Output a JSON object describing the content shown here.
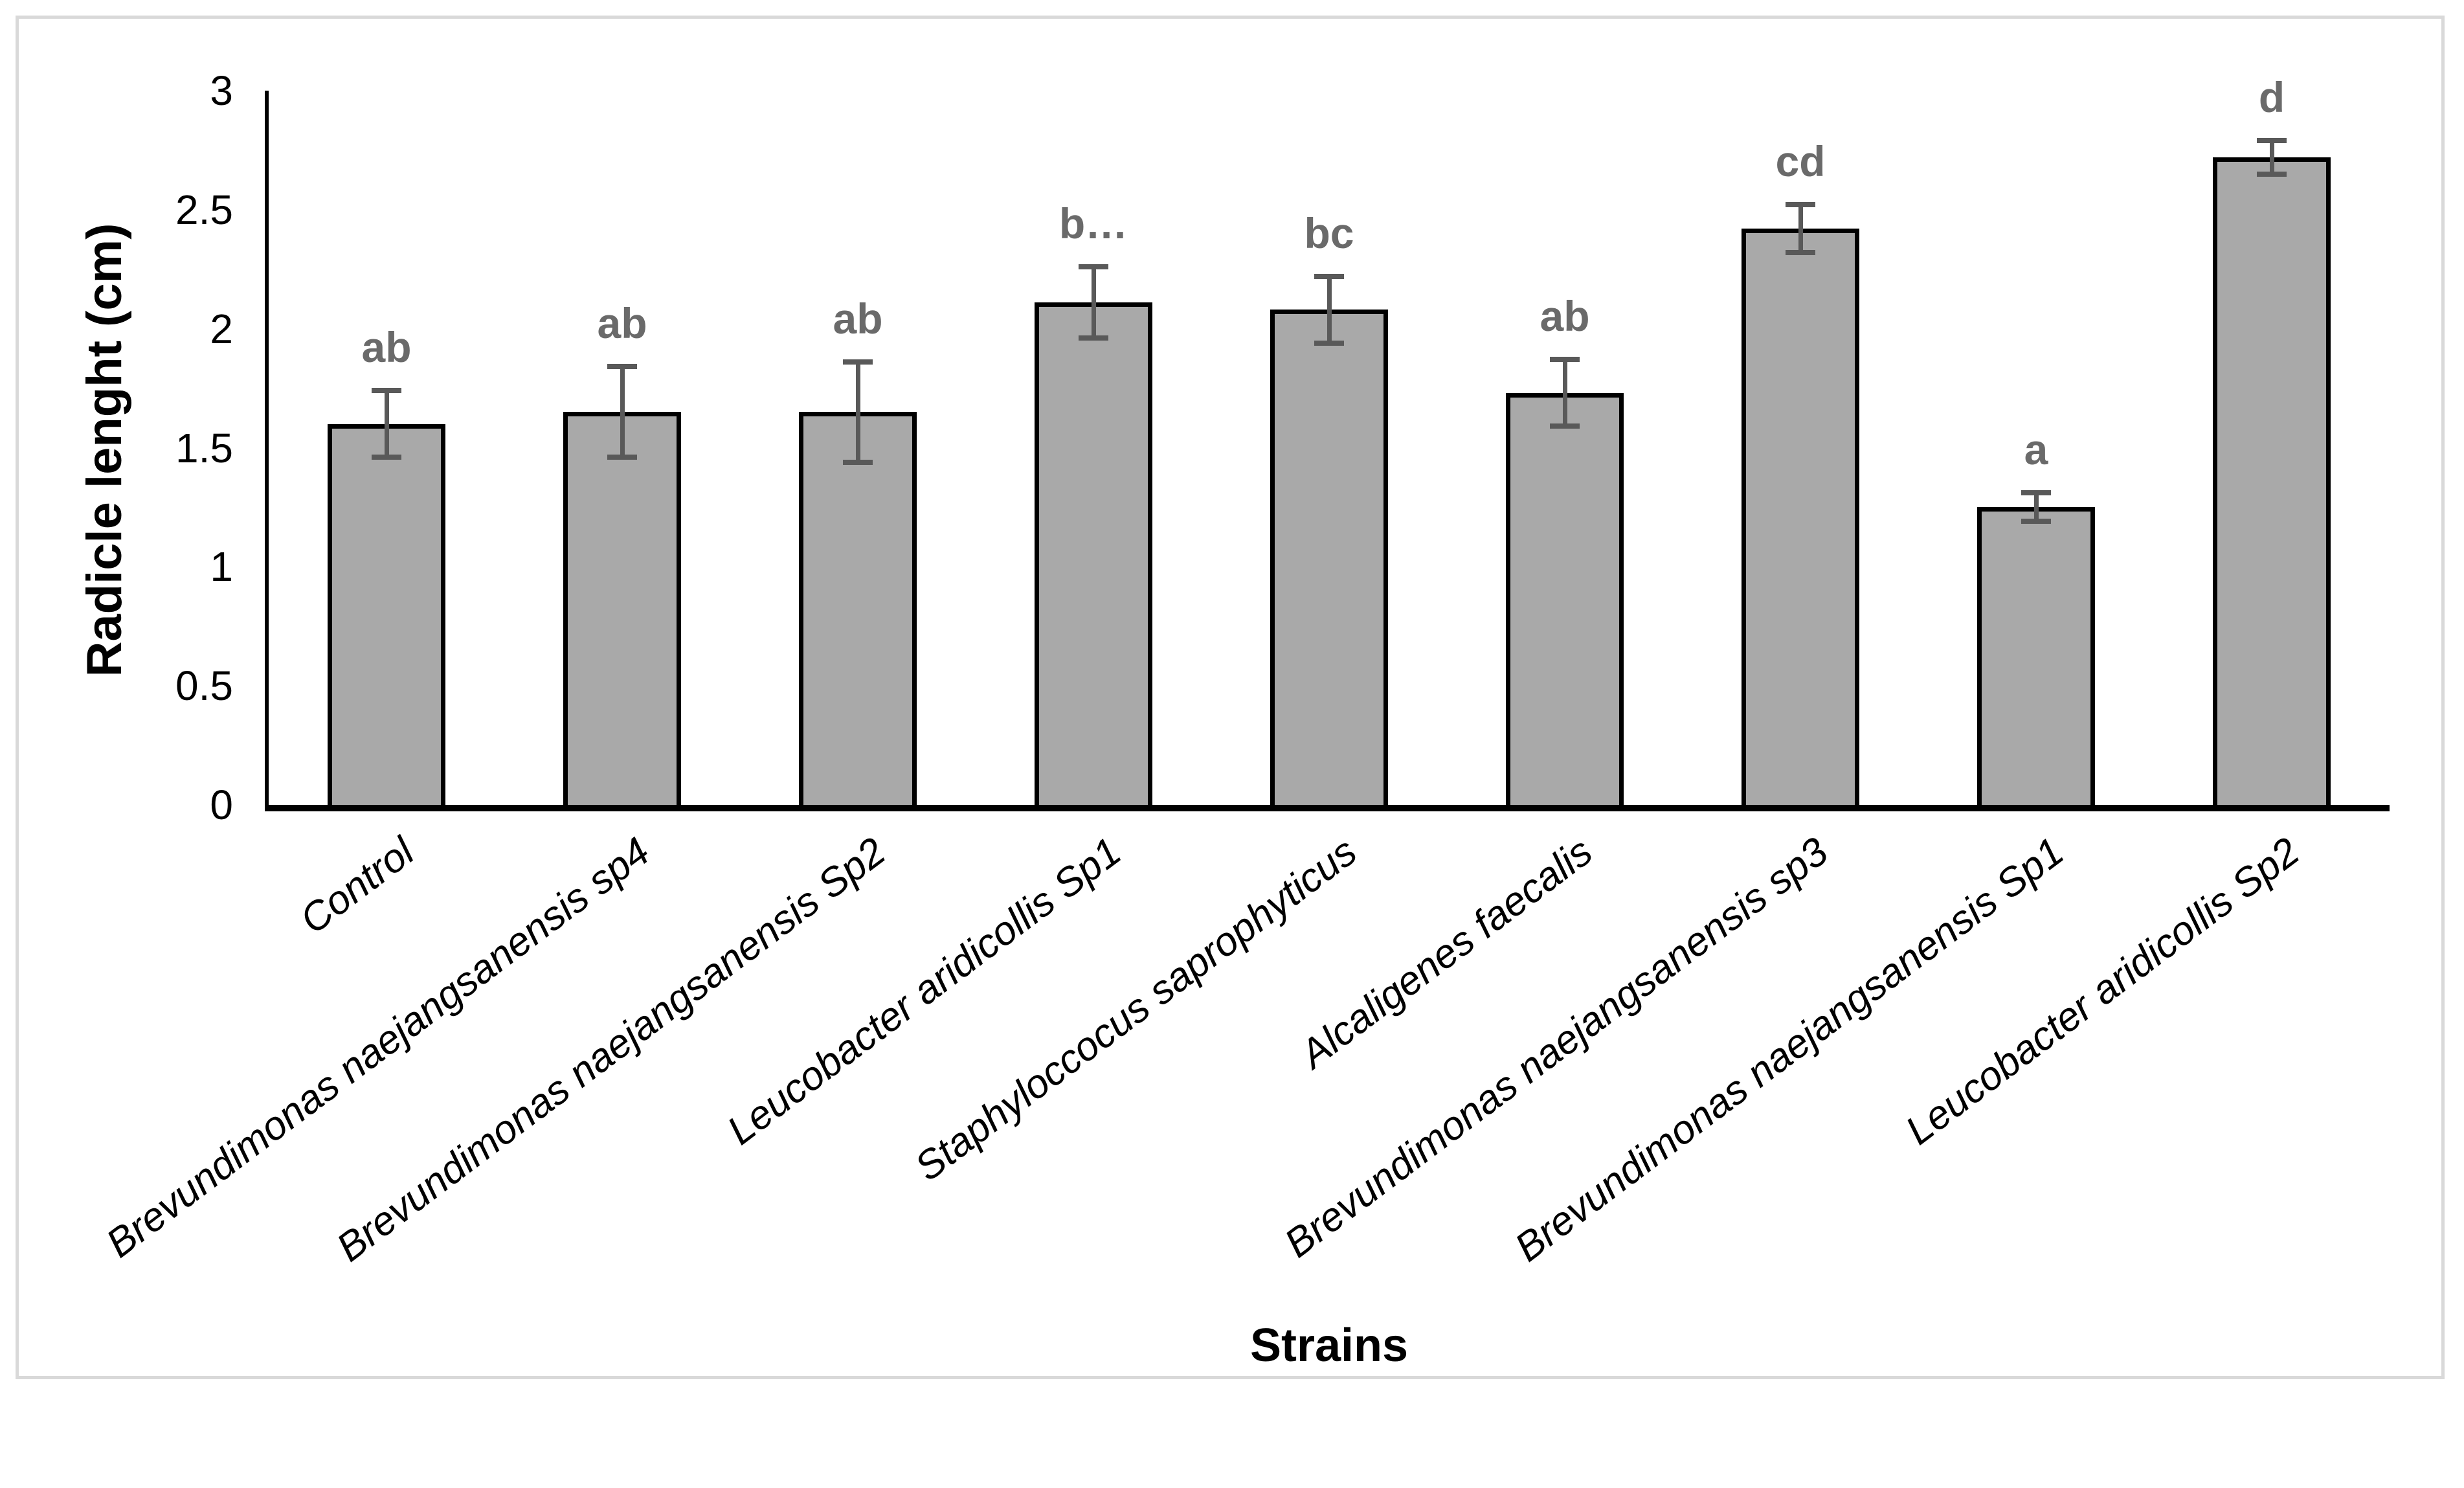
{
  "chart_data": {
    "type": "bar",
    "title": "",
    "xlabel": "Strains",
    "ylabel": "Radicle lenght (cm)",
    "ylim": [
      0,
      3
    ],
    "yticks": [
      "0",
      "0.5",
      "1",
      "1.5",
      "2",
      "2.5",
      "3"
    ],
    "grid": false,
    "legend": false,
    "categories": [
      "Control",
      "Brevundimonas naejangsanensis sp4",
      "Brevundimonas naejangsanensis Sp2",
      "Leucobacter aridicollis Sp1",
      "Staphyloccocus saprophyticus",
      "Alcaligenes faecalis",
      "Brevundimonas naejangsanensis sp3",
      "Brevundimonas naejangsanensis Sp1",
      "Leucobacter aridicollis Sp2"
    ],
    "values": [
      1.6,
      1.65,
      1.65,
      2.11,
      2.08,
      1.73,
      2.42,
      1.25,
      2.72
    ],
    "errors": [
      0.14,
      0.19,
      0.21,
      0.15,
      0.14,
      0.14,
      0.1,
      0.06,
      0.07
    ],
    "significance_letters": [
      "ab",
      "ab",
      "ab",
      "b…",
      "bc",
      "ab",
      "cd",
      "a",
      "d"
    ],
    "colors": {
      "bar_fill": "#a9a9a9",
      "bar_border": "#000000",
      "error_bar": "#595959",
      "letter": "#6a6a6a",
      "figure_border": "#d9d9d9",
      "axis": "#000000"
    }
  }
}
